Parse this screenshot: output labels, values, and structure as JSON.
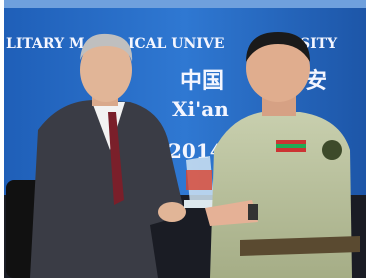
{
  "banner": {
    "university_en": [
      "LITARY M",
      "ICAL UNIVE",
      "SITY"
    ],
    "city_cn": [
      "中国",
      "安"
    ],
    "city_en": "Xi'an",
    "year": "2014"
  }
}
